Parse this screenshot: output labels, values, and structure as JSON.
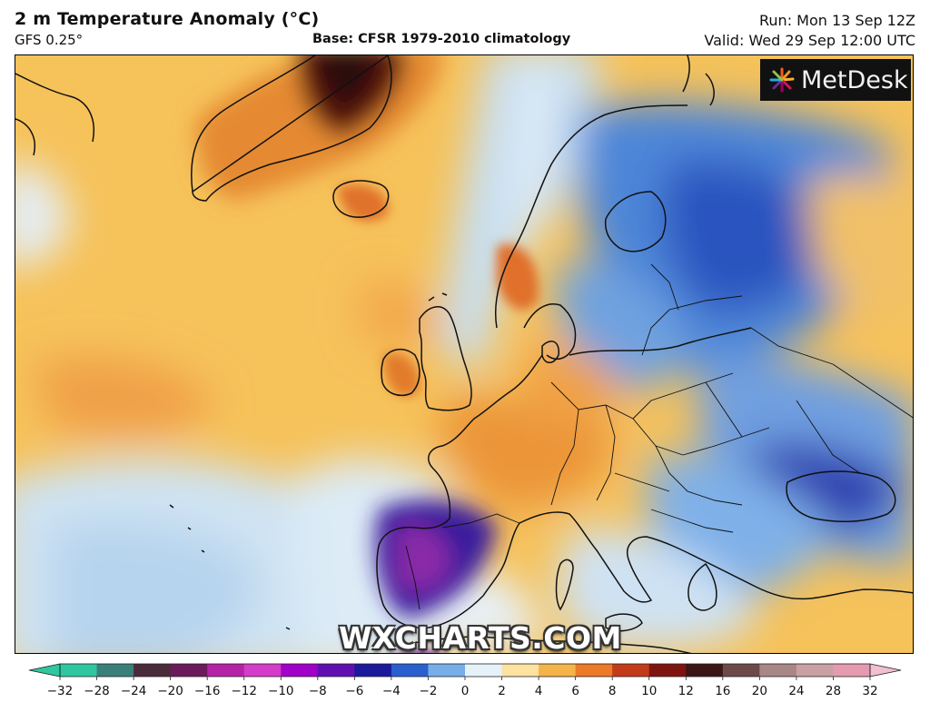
{
  "header": {
    "title": "2 m Temperature Anomaly (°C)",
    "model": "GFS 0.25°",
    "base": "Base: CFSR 1979-2010 climatology",
    "run": "Run: Mon 13 Sep 12Z",
    "valid": "Valid: Wed 29 Sep 12:00 UTC"
  },
  "logo": {
    "text": "MetDesk",
    "icon": "sunburst-logo-icon"
  },
  "watermark": "WXCHARTS.COM",
  "colorbar": {
    "ticks": [
      "−32",
      "−28",
      "−24",
      "−20",
      "−16",
      "−12",
      "−10",
      "−8",
      "−6",
      "−4",
      "−2",
      "0",
      "2",
      "4",
      "6",
      "8",
      "10",
      "12",
      "16",
      "20",
      "24",
      "28",
      "32"
    ],
    "colors": [
      "#2fc7a0",
      "#3a7f7a",
      "#4a2b3a",
      "#6b1a5a",
      "#b522a6",
      "#d43cc9",
      "#a000c8",
      "#6010b0",
      "#1a1a9a",
      "#2a5fd0",
      "#77aee8",
      "#e6f2fa",
      "#fde2a0",
      "#f5b447",
      "#ec7a26",
      "#c33b18",
      "#7e1410",
      "#3a1614",
      "#6b4a48",
      "#a88887",
      "#caa0a4",
      "#e59ab0",
      "#f0bfd0"
    ]
  },
  "colors": {
    "warm_anomaly": "#f3b543",
    "strong_warm": "#d0501f",
    "extreme_warm": "#4a1010",
    "cool_anomaly": "#bcd9f0",
    "cold_anomaly": "#2b62c8",
    "strong_cold": "#3a1c9c",
    "extreme_cold": "#6a1aa0"
  }
}
